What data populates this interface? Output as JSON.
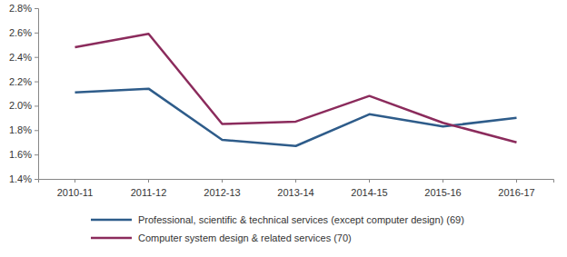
{
  "chart_data": {
    "type": "line",
    "categories": [
      "2010-11",
      "2011-12",
      "2012-13",
      "2013-14",
      "2014-15",
      "2015-16",
      "2016-17"
    ],
    "series": [
      {
        "name": "Professional, scientific & technical services (except computer design) (69)",
        "color": "#2e5c8a",
        "values": [
          2.11,
          2.14,
          1.72,
          1.67,
          1.93,
          1.83,
          1.9
        ]
      },
      {
        "name": "Computer system design & related services (70)",
        "color": "#8b2b5c",
        "values": [
          2.48,
          2.59,
          1.85,
          1.87,
          2.08,
          1.86,
          1.7
        ]
      }
    ],
    "ylim": [
      1.4,
      2.8
    ],
    "yticks": [
      {
        "value": 1.4,
        "label": "1.4%"
      },
      {
        "value": 1.6,
        "label": "1.6%"
      },
      {
        "value": 1.8,
        "label": "1.8%"
      },
      {
        "value": 2.0,
        "label": "2.0%"
      },
      {
        "value": 2.2,
        "label": "2.2%"
      },
      {
        "value": 2.4,
        "label": "2.4%"
      },
      {
        "value": 2.6,
        "label": "2.6%"
      },
      {
        "value": 2.8,
        "label": "2.8%"
      }
    ],
    "grid": false,
    "legend": "bottom"
  }
}
